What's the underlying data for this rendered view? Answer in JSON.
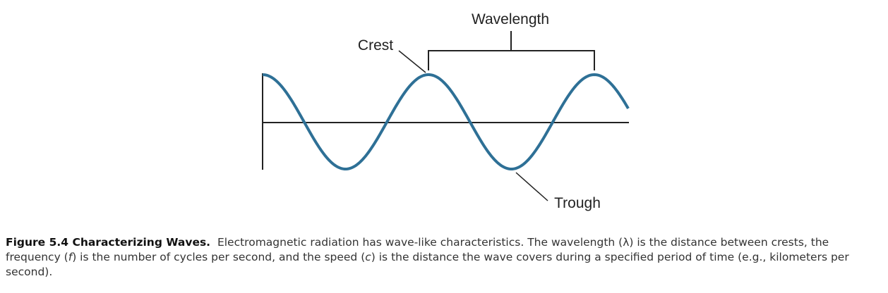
{
  "labels": {
    "wavelength": "Wavelength",
    "crest": "Crest",
    "trough": "Trough"
  },
  "caption": {
    "label": "Figure 5.4 Characterizing Waves.",
    "segments": [
      "Electromagnetic radiation has wave-like characteristics. The wavelength (λ) is the distance between crests, the frequency (",
      "f",
      ") is the number of cycles per second, and the speed (",
      "c",
      ") is the distance the wave covers during a specified period of time (e.g., kilometers per second)."
    ]
  }
}
